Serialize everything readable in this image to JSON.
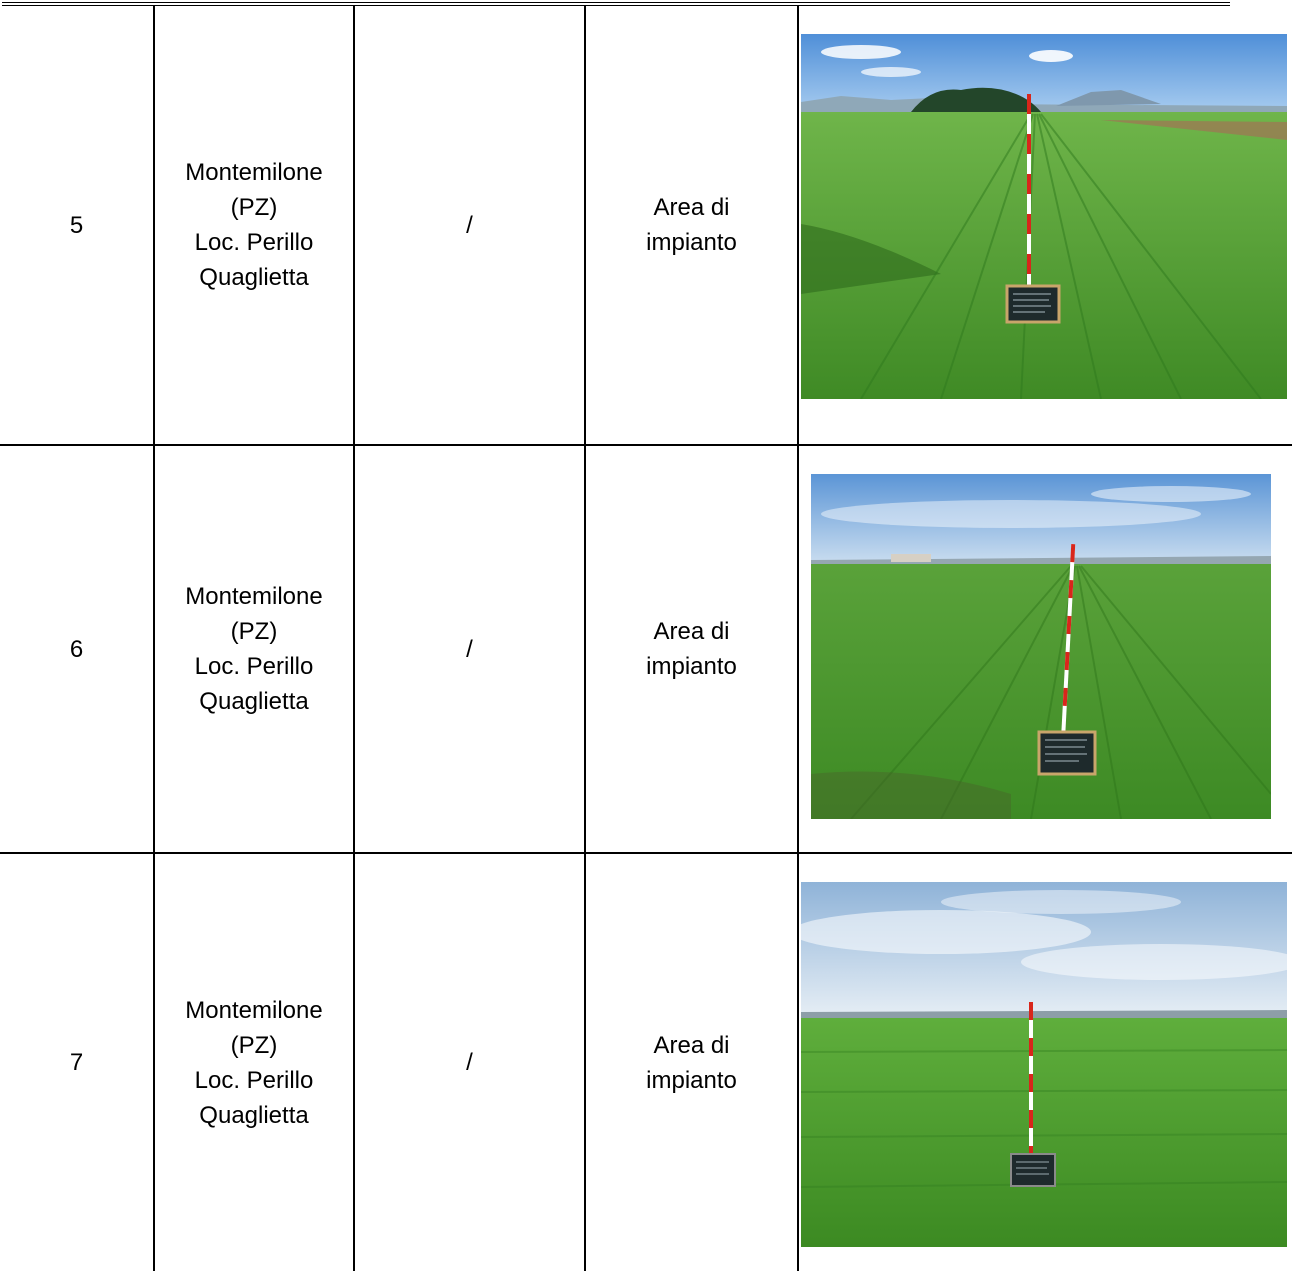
{
  "rows": [
    {
      "number": "5",
      "location": "Montemilone\n(PZ)\nLoc. Perillo\nQuaglietta",
      "reference": "/",
      "area": "Area di\nimpianto",
      "photo_icon": "field-survey-photo-icon"
    },
    {
      "number": "6",
      "location": "Montemilone\n(PZ)\nLoc. Perillo\nQuaglietta",
      "reference": "/",
      "area": "Area di\nimpianto",
      "photo_icon": "field-survey-photo-icon"
    },
    {
      "number": "7",
      "location": "Montemilone\n(PZ)\nLoc. Perillo\nQuaglietta",
      "reference": "/",
      "area": "Area di\nimpianto",
      "photo_icon": "field-survey-photo-icon"
    }
  ],
  "colors": {
    "border": "#000000",
    "sky": "#7fb3e8",
    "field": "#4f9a2f",
    "pole_red": "#d8261b"
  }
}
